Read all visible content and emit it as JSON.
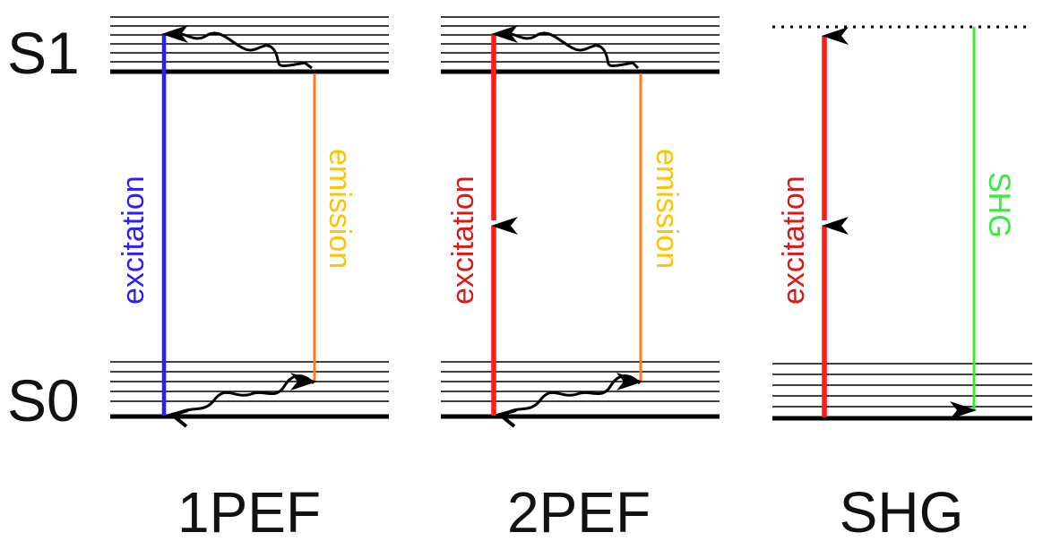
{
  "states": {
    "upper": "S1",
    "lower": "S0"
  },
  "panels": [
    {
      "title": "1PEF",
      "excitation_label": "excitation",
      "excitation_color": "#2b1fff",
      "second_label": "emission",
      "second_label_color": "#ffc400",
      "second_arrow_color": "#ff7a1a"
    },
    {
      "title": "2PEF",
      "excitation_label": "excitation",
      "excitation_color": "#d91a1a",
      "excitation_arrow_color": "#ff1a1a",
      "second_label": "emission",
      "second_label_color": "#ffc400",
      "second_arrow_color": "#ff7a1a"
    },
    {
      "title": "SHG",
      "excitation_label": "excitation",
      "excitation_color": "#d91a1a",
      "excitation_arrow_color": "#ff1a1a",
      "second_label": "SHG",
      "second_label_color": "#33ee33",
      "second_arrow_color": "#33ee33"
    }
  ]
}
